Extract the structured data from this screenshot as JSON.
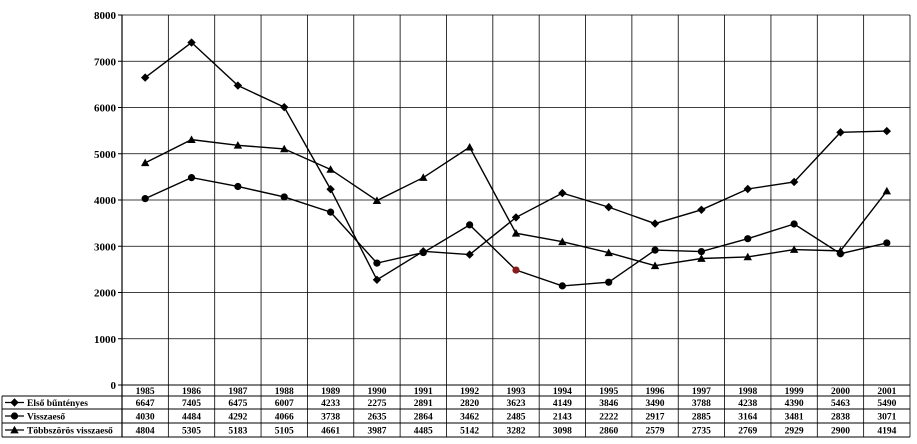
{
  "chart_data": {
    "type": "line",
    "title": "",
    "xlabel": "",
    "ylabel": "",
    "ylim": [
      0,
      8000
    ],
    "yticks": [
      0,
      1000,
      2000,
      3000,
      4000,
      5000,
      6000,
      7000,
      8000
    ],
    "grid": true,
    "legend": "data-table-left",
    "categories": [
      "1985",
      "1986",
      "1987",
      "1988",
      "1989",
      "1990",
      "1991",
      "1992",
      "1993",
      "1994",
      "1995",
      "1996",
      "1997",
      "1998",
      "1999",
      "2000",
      "2001"
    ],
    "series": [
      {
        "name": "Első bűntényes",
        "marker": "diamond",
        "values": [
          6647,
          7405,
          6475,
          6007,
          4233,
          2275,
          2891,
          2820,
          3623,
          4149,
          3846,
          3490,
          3788,
          4238,
          4390,
          5463,
          5490
        ]
      },
      {
        "name": "Visszaeső",
        "marker": "circle",
        "values": [
          4030,
          4484,
          4292,
          4066,
          3738,
          2635,
          2864,
          3462,
          2485,
          2143,
          2222,
          2917,
          2885,
          3164,
          3481,
          2838,
          3071
        ]
      },
      {
        "name": "Többszörös visszaeső",
        "marker": "triangle",
        "values": [
          4804,
          5305,
          5183,
          5105,
          4661,
          3987,
          4485,
          5142,
          3282,
          3098,
          2860,
          2579,
          2735,
          2769,
          2929,
          2900,
          4194
        ]
      }
    ],
    "colors": {
      "line": "#000000",
      "grid": "#000000",
      "highlight": "#8b1a1a"
    }
  }
}
